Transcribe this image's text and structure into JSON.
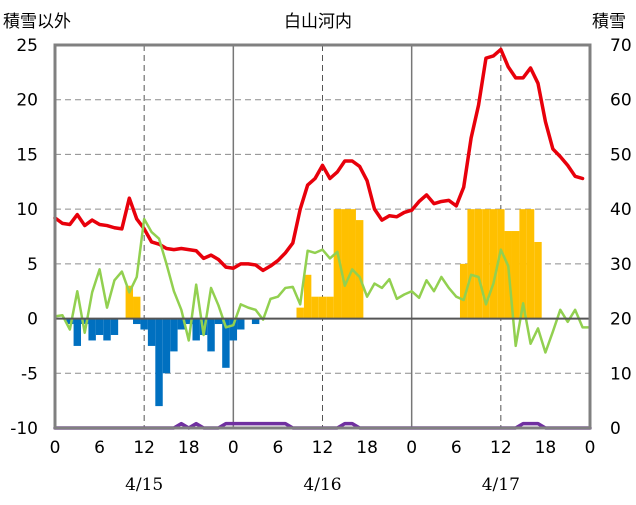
{
  "chart_data": {
    "type": "bar+line",
    "title": "白山河内",
    "left_axis_label": "積雪以外",
    "right_axis_label": "積雪",
    "left_ylim": [
      -10,
      25
    ],
    "left_ticks": [
      "25",
      "20",
      "15",
      "10",
      "5",
      "0",
      "-5",
      "-10"
    ],
    "right_ylim": [
      0,
      70
    ],
    "right_ticks": [
      "70",
      "60",
      "50",
      "40",
      "30",
      "20",
      "10",
      "0"
    ],
    "x_range_hours": [
      0,
      72
    ],
    "x_ticks": [
      "0",
      "6",
      "12",
      "18",
      "0",
      "6",
      "12",
      "18",
      "0",
      "6",
      "12",
      "18",
      "0"
    ],
    "dates": [
      "4/15",
      "4/16",
      "4/17"
    ],
    "grid": {
      "vertical_dashed_at_hours": [
        12,
        36,
        60
      ],
      "vertical_solid_at_hours": [
        24,
        48
      ],
      "horizontal_dashed": true
    },
    "series": [
      {
        "color": "#e8000b",
        "axis": "left",
        "kind": "line",
        "points": [
          [
            0,
            9.2
          ],
          [
            1,
            8.7
          ],
          [
            2,
            8.6
          ],
          [
            3,
            9.5
          ],
          [
            4,
            8.5
          ],
          [
            5,
            9.0
          ],
          [
            6,
            8.6
          ],
          [
            7,
            8.5
          ],
          [
            8,
            8.3
          ],
          [
            9,
            8.2
          ],
          [
            10,
            11.0
          ],
          [
            11,
            9.1
          ],
          [
            12,
            8.2
          ],
          [
            13,
            7.0
          ],
          [
            14,
            6.8
          ],
          [
            15,
            6.4
          ],
          [
            16,
            6.3
          ],
          [
            17,
            6.4
          ],
          [
            18,
            6.3
          ],
          [
            19,
            6.2
          ],
          [
            20,
            5.5
          ],
          [
            21,
            5.8
          ],
          [
            22,
            5.4
          ],
          [
            23,
            4.7
          ],
          [
            24,
            4.6
          ],
          [
            25,
            5.0
          ],
          [
            26,
            5.0
          ],
          [
            27,
            4.9
          ],
          [
            28,
            4.4
          ],
          [
            29,
            4.8
          ],
          [
            30,
            5.3
          ],
          [
            31,
            6.0
          ],
          [
            32,
            6.9
          ],
          [
            33,
            10.0
          ],
          [
            34,
            12.2
          ],
          [
            35,
            12.8
          ],
          [
            36,
            14.0
          ],
          [
            37,
            12.8
          ],
          [
            38,
            13.4
          ],
          [
            39,
            14.4
          ],
          [
            40,
            14.4
          ],
          [
            41,
            13.9
          ],
          [
            42,
            12.6
          ],
          [
            43,
            10.0
          ],
          [
            44,
            9.0
          ],
          [
            45,
            9.4
          ],
          [
            46,
            9.3
          ],
          [
            47,
            9.7
          ],
          [
            48,
            9.9
          ],
          [
            49,
            10.7
          ],
          [
            50,
            11.3
          ],
          [
            51,
            10.5
          ],
          [
            52,
            10.7
          ],
          [
            53,
            10.8
          ],
          [
            54,
            10.3
          ],
          [
            55,
            12.0
          ],
          [
            56,
            16.5
          ],
          [
            57,
            19.5
          ],
          [
            58,
            23.8
          ],
          [
            59,
            24.0
          ],
          [
            60,
            24.6
          ],
          [
            61,
            23.0
          ],
          [
            62,
            22.0
          ],
          [
            63,
            22.0
          ],
          [
            64,
            22.9
          ],
          [
            65,
            21.5
          ],
          [
            66,
            18.0
          ],
          [
            67,
            15.5
          ],
          [
            68,
            14.8
          ],
          [
            69,
            14.0
          ],
          [
            70,
            13.0
          ],
          [
            71,
            12.8
          ]
        ]
      },
      {
        "color": "#92d050",
        "axis": "left",
        "kind": "line",
        "points": [
          [
            0,
            0.2
          ],
          [
            1,
            0.3
          ],
          [
            2,
            -1.0
          ],
          [
            3,
            2.5
          ],
          [
            4,
            -1.3
          ],
          [
            5,
            2.4
          ],
          [
            6,
            4.5
          ],
          [
            7,
            1.0
          ],
          [
            8,
            3.5
          ],
          [
            9,
            4.3
          ],
          [
            10,
            2.4
          ],
          [
            11,
            3.8
          ],
          [
            12,
            9.1
          ],
          [
            13,
            7.9
          ],
          [
            14,
            7.3
          ],
          [
            15,
            5.0
          ],
          [
            16,
            2.5
          ],
          [
            17,
            0.8
          ],
          [
            18,
            -2.0
          ],
          [
            19,
            3.1
          ],
          [
            20,
            -1.5
          ],
          [
            21,
            2.8
          ],
          [
            22,
            1.2
          ],
          [
            23,
            -0.8
          ],
          [
            24,
            -0.6
          ],
          [
            25,
            1.3
          ],
          [
            26,
            1.0
          ],
          [
            27,
            0.8
          ],
          [
            28,
            -0.1
          ],
          [
            29,
            1.8
          ],
          [
            30,
            2.0
          ],
          [
            31,
            2.8
          ],
          [
            32,
            2.9
          ],
          [
            33,
            1.3
          ],
          [
            34,
            6.2
          ],
          [
            35,
            6.0
          ],
          [
            36,
            6.3
          ],
          [
            37,
            5.5
          ],
          [
            38,
            6.1
          ],
          [
            39,
            3.0
          ],
          [
            40,
            4.5
          ],
          [
            41,
            3.8
          ],
          [
            42,
            2.0
          ],
          [
            43,
            3.2
          ],
          [
            44,
            2.8
          ],
          [
            45,
            3.6
          ],
          [
            46,
            1.8
          ],
          [
            47,
            2.2
          ],
          [
            48,
            2.5
          ],
          [
            49,
            1.9
          ],
          [
            50,
            3.5
          ],
          [
            51,
            2.5
          ],
          [
            52,
            3.8
          ],
          [
            53,
            2.8
          ],
          [
            54,
            2.0
          ],
          [
            55,
            1.7
          ],
          [
            56,
            4.0
          ],
          [
            57,
            3.8
          ],
          [
            58,
            1.3
          ],
          [
            59,
            3.2
          ],
          [
            60,
            6.3
          ],
          [
            61,
            4.8
          ],
          [
            62,
            -2.5
          ],
          [
            63,
            1.4
          ],
          [
            64,
            -2.3
          ],
          [
            65,
            -0.9
          ],
          [
            66,
            -3.1
          ],
          [
            67,
            -1.2
          ],
          [
            68,
            0.8
          ],
          [
            69,
            -0.3
          ],
          [
            70,
            0.8
          ],
          [
            71,
            -0.8
          ],
          [
            72,
            -0.8
          ]
        ]
      },
      {
        "color": "#7030a0",
        "axis": "left",
        "kind": "line",
        "points": [
          [
            0,
            -10
          ],
          [
            16,
            -10
          ],
          [
            17,
            -9.6
          ],
          [
            18,
            -10
          ],
          [
            19,
            -9.6
          ],
          [
            20,
            -10
          ],
          [
            22,
            -10
          ],
          [
            23,
            -9.6
          ],
          [
            31,
            -9.6
          ],
          [
            32,
            -10
          ],
          [
            38,
            -10
          ],
          [
            39,
            -9.6
          ],
          [
            40,
            -9.6
          ],
          [
            41,
            -10
          ],
          [
            62,
            -10
          ],
          [
            63,
            -9.6
          ],
          [
            65,
            -9.6
          ],
          [
            66,
            -10
          ],
          [
            72,
            -10
          ]
        ]
      },
      {
        "color": "#ffc000",
        "axis": "left",
        "kind": "bar",
        "points": [
          [
            10,
            3
          ],
          [
            11,
            2
          ],
          [
            33,
            1
          ],
          [
            34,
            4
          ],
          [
            35,
            2
          ],
          [
            36,
            2
          ],
          [
            37,
            2
          ],
          [
            38,
            10
          ],
          [
            39,
            10
          ],
          [
            40,
            10
          ],
          [
            41,
            9
          ],
          [
            55,
            5
          ],
          [
            56,
            10
          ],
          [
            57,
            10
          ],
          [
            58,
            10
          ],
          [
            59,
            10
          ],
          [
            60,
            10
          ],
          [
            61,
            8
          ],
          [
            62,
            8
          ],
          [
            63,
            10
          ],
          [
            64,
            10
          ],
          [
            65,
            7
          ]
        ]
      },
      {
        "color": "#0070c0",
        "axis": "left",
        "kind": "bar",
        "points": [
          [
            2,
            -0.5
          ],
          [
            3,
            -2.5
          ],
          [
            4,
            -0.5
          ],
          [
            5,
            -2.0
          ],
          [
            6,
            -1.5
          ],
          [
            7,
            -2.0
          ],
          [
            8,
            -1.5
          ],
          [
            11,
            -0.5
          ],
          [
            12,
            -1.0
          ],
          [
            13,
            -2.5
          ],
          [
            14,
            -8.0
          ],
          [
            15,
            -5.0
          ],
          [
            16,
            -3.0
          ],
          [
            17,
            -1.0
          ],
          [
            18,
            -0.5
          ],
          [
            19,
            -2.0
          ],
          [
            20,
            -1.5
          ],
          [
            21,
            -3.0
          ],
          [
            22,
            -0.5
          ],
          [
            23,
            -4.5
          ],
          [
            24,
            -2.0
          ],
          [
            25,
            -1.0
          ],
          [
            27,
            -0.5
          ]
        ]
      }
    ]
  }
}
